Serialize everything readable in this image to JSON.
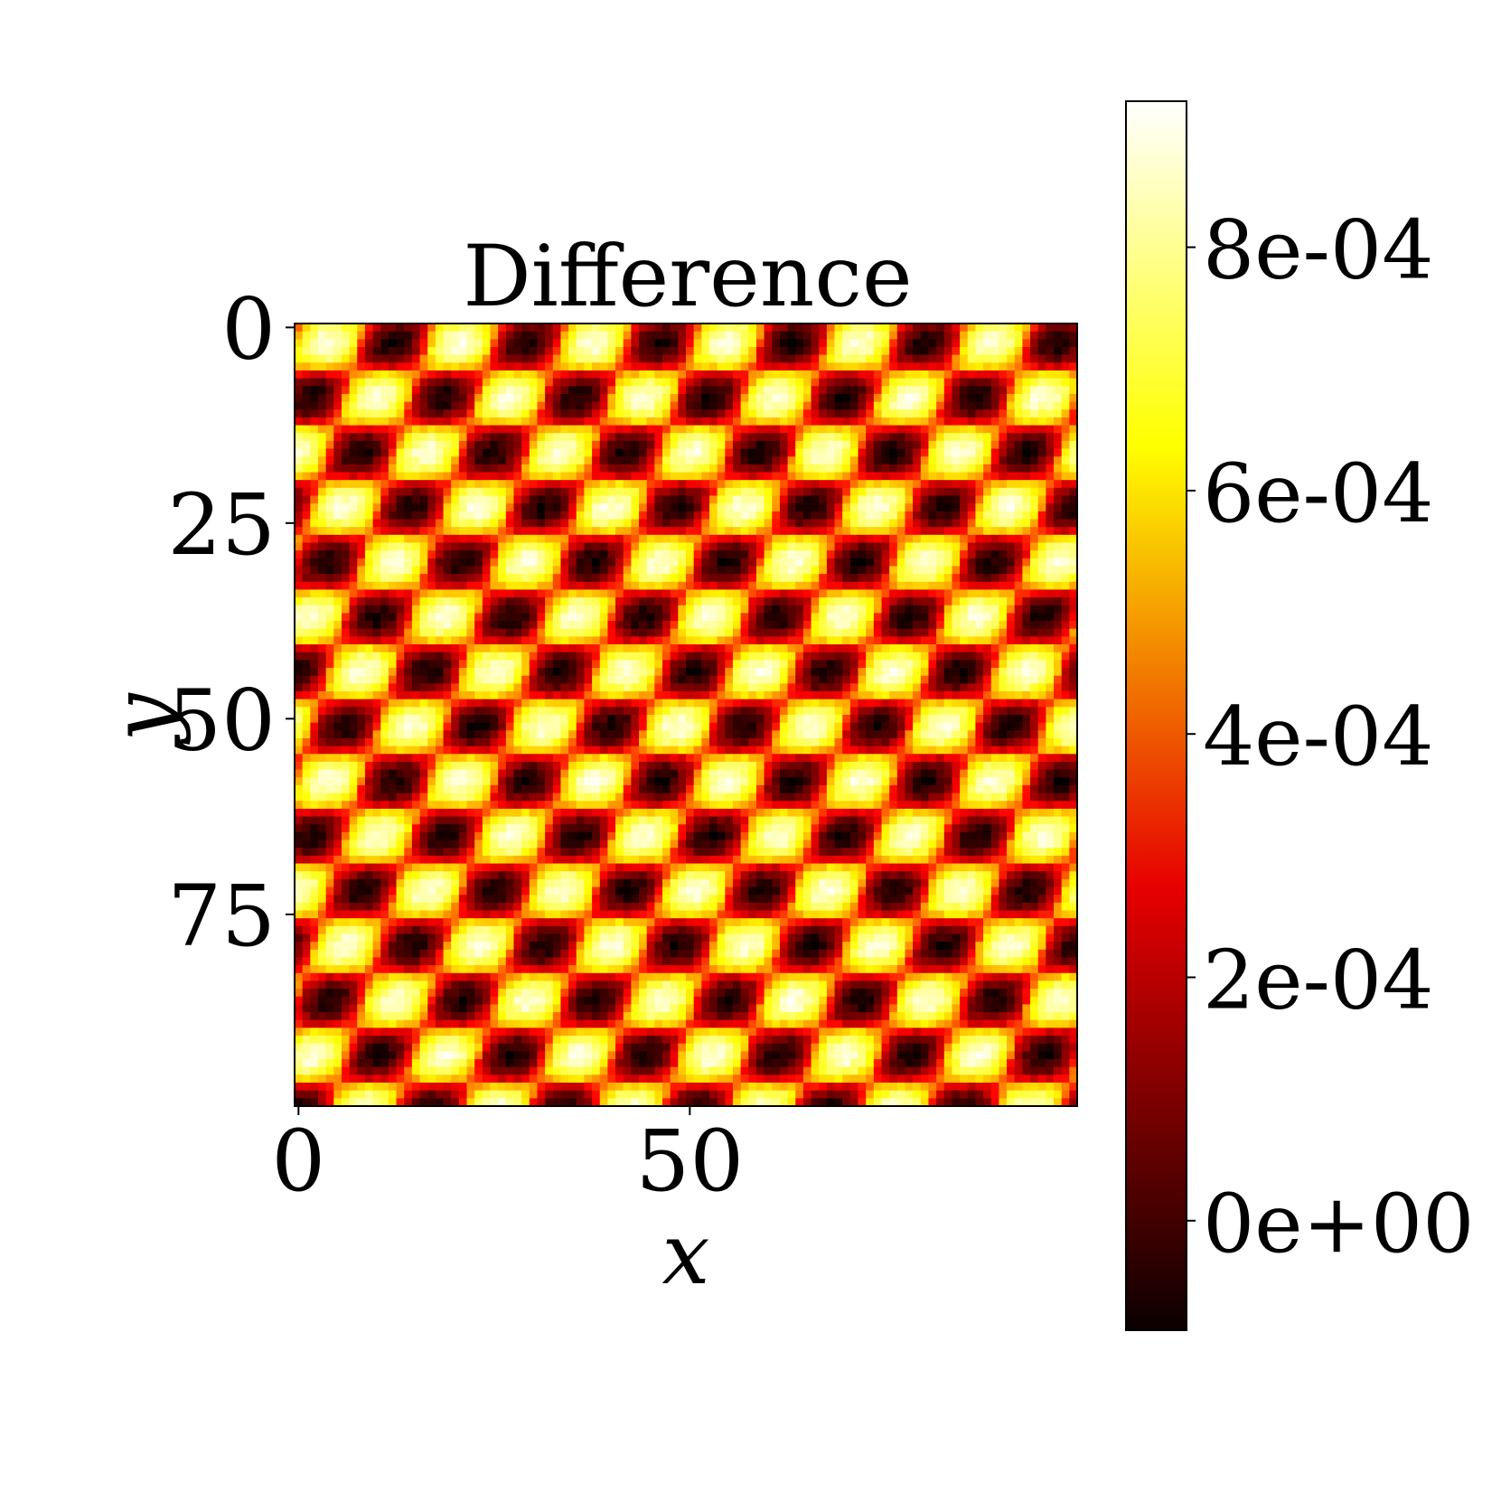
{
  "chart_data": {
    "type": "heatmap",
    "title": "Difference",
    "xlabel": "x",
    "ylabel": "y",
    "grid": false,
    "colormap": "hot",
    "colors": [
      "#000000",
      "#e60000",
      "#ff8000",
      "#ffff00",
      "#ffffff"
    ],
    "size": [
      100,
      100
    ],
    "x_range": [
      -0.5,
      99.5
    ],
    "y_range": [
      -0.5,
      99.5
    ],
    "y_inverted": true,
    "x_ticks": [
      0,
      50
    ],
    "x_tick_labels": [
      "0",
      "50"
    ],
    "y_ticks": [
      0,
      25,
      50,
      75
    ],
    "y_tick_labels": [
      "0",
      "25",
      "50",
      "75"
    ],
    "value_range": [
      -9e-05,
      0.00092
    ],
    "pattern": {
      "mean": 0.00041,
      "amplitude": 0.00047,
      "period_x": 17,
      "period_y": 14,
      "checkerboard": true
    },
    "colorbar": {
      "ticks": [
        0.0,
        0.0002,
        0.0004,
        0.0006,
        0.0008
      ],
      "tick_labels": [
        "0e+00",
        "2e-04",
        "4e-04",
        "6e-04",
        "8e-04"
      ]
    }
  }
}
